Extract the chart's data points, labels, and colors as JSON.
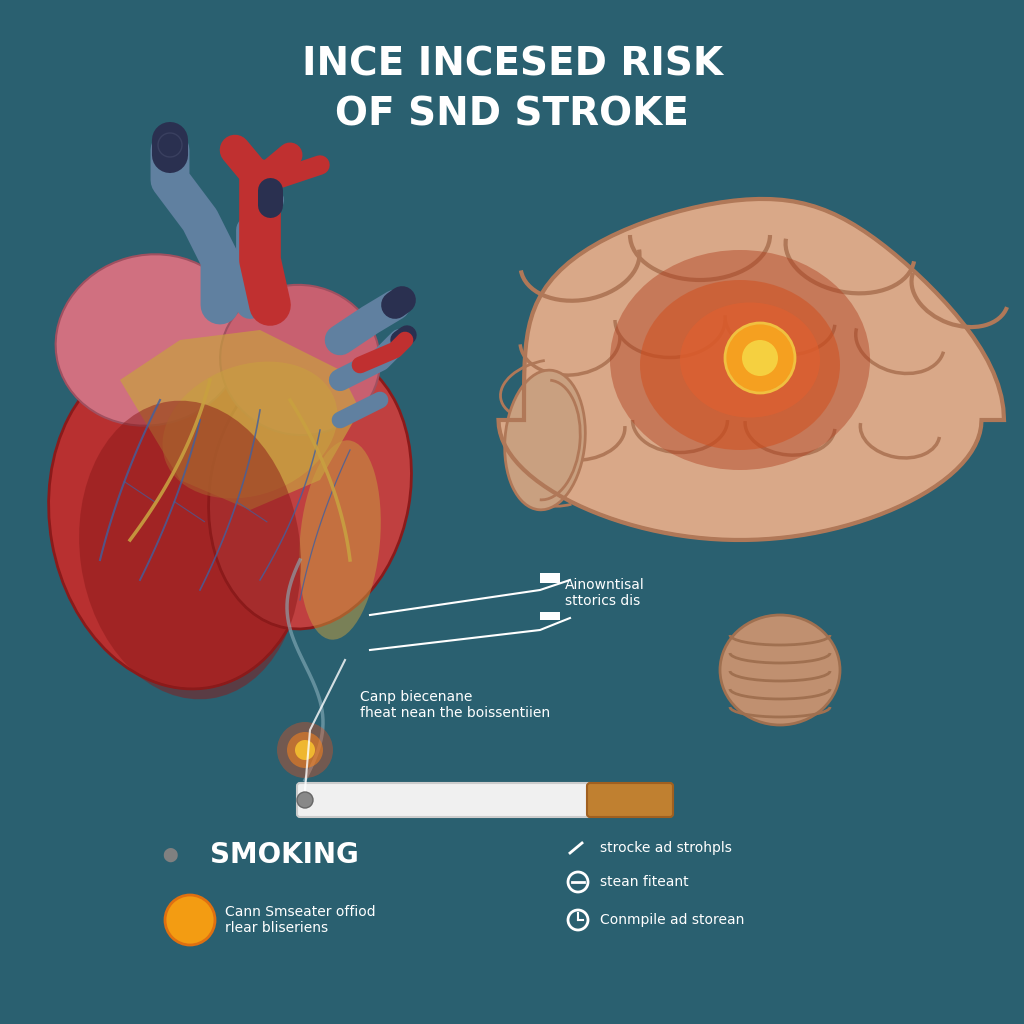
{
  "bg_color": "#2a6070",
  "title_line1": "INCE INCESED RISK",
  "title_line2": "OF SND STROKE",
  "title_color": "#ffffff",
  "title_fontsize": 28,
  "annotation1_text": "Ainowntisal\nsttorics dis",
  "annotation2_text": "Canp biecenane\nfheat nean the boissentiien",
  "smoking_label": "SMOKING",
  "bullet1": "strocke ad strohpls",
  "bullet2": "stean fiteant",
  "bullet3": "Cann Smseater offiod\nrlear bliseriens",
  "bullet4": "Conmpile ad storean",
  "white_text": "#ffffff",
  "line_color": "#ffffff"
}
